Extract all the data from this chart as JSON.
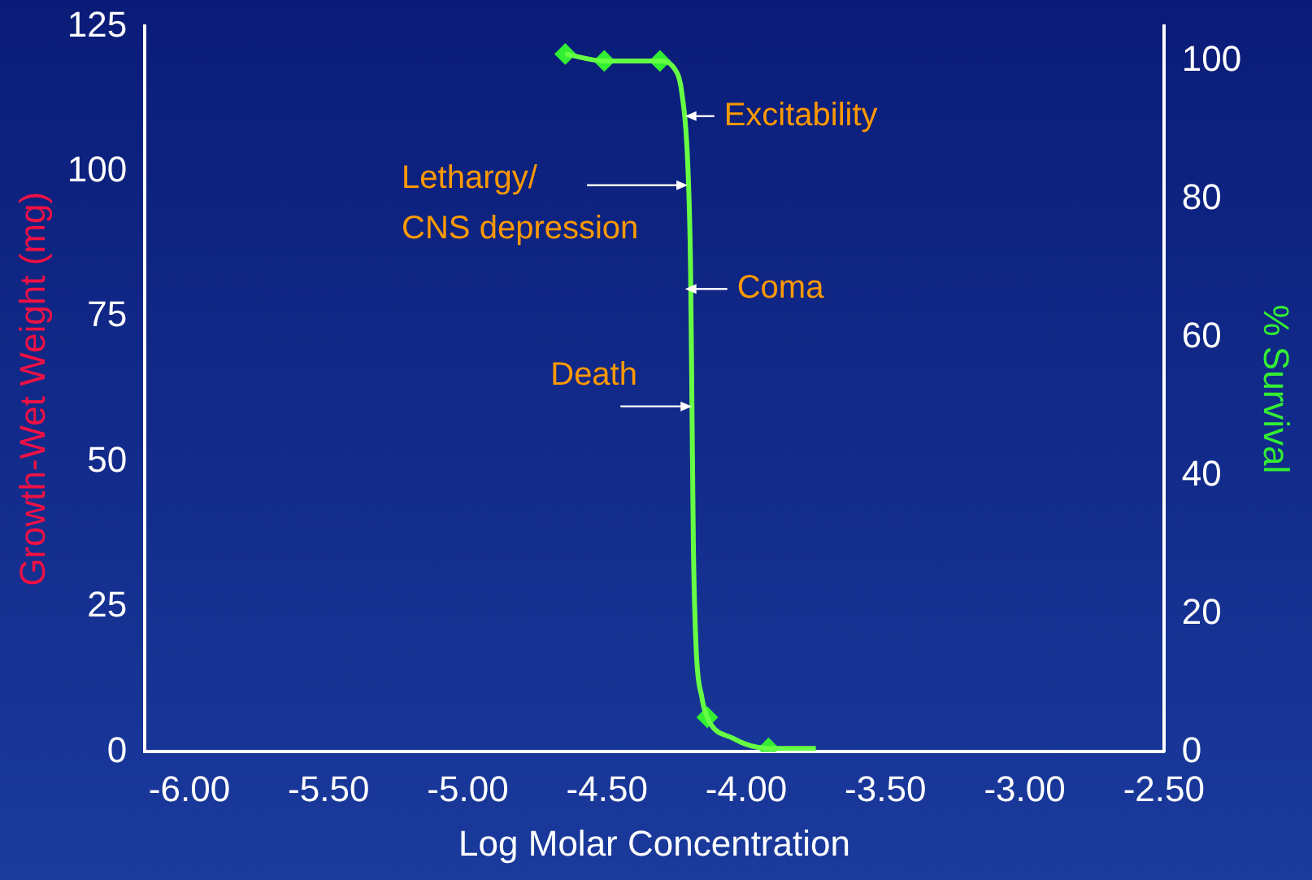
{
  "chart_data": {
    "type": "line",
    "xlabel": "Log Molar Concentration",
    "ylabel": "Growth-Wet Weight (mg)",
    "y2label": "% Survival",
    "xlim": [
      -6.16,
      -2.5
    ],
    "xticks": [
      {
        "value": -6,
        "label": "-6.00"
      },
      {
        "value": -5.5,
        "label": "-5.50"
      },
      {
        "value": -5,
        "label": "-5.00"
      },
      {
        "value": -4.5,
        "label": "-4.50"
      },
      {
        "value": -4,
        "label": "-4.00"
      },
      {
        "value": -3.5,
        "label": "-3.50"
      },
      {
        "value": -3,
        "label": "-3.00"
      },
      {
        "value": -2.5,
        "label": "-2.50"
      }
    ],
    "ylim": [
      0,
      125
    ],
    "yticks": [
      0,
      25,
      50,
      75,
      100,
      125
    ],
    "y2lim": [
      0,
      105
    ],
    "y2ticks": [
      0,
      20,
      40,
      60,
      80,
      100
    ],
    "series": [
      {
        "axis": "y2",
        "color": "#66ff44",
        "marker": "none",
        "x": [
          -4.65,
          -4.51,
          -4.31,
          -4.26,
          -4.23,
          -4.21,
          -4.2,
          -4.195,
          -4.19,
          -4.18,
          -4.16,
          -4.14,
          -4.05,
          -3.92,
          -3.75
        ],
        "values": [
          101,
          100,
          100,
          99,
          95,
          85,
          70,
          50,
          30,
          15,
          8,
          5,
          2,
          0.5,
          0.5
        ]
      },
      {
        "type": "scatter",
        "axis": "y2",
        "color": "#33ee33",
        "marker": "diamond",
        "x": [
          -4.65,
          -4.51,
          -4.31,
          -4.14,
          -3.92
        ],
        "values": [
          101,
          100,
          100,
          5,
          0.5
        ]
      }
    ],
    "annotations": [
      {
        "text": "Excitability",
        "x": -4.22,
        "y": 92
      },
      {
        "text": "Lethargy/\nCNS depression",
        "x": -4.21,
        "y": 82
      },
      {
        "text": "Coma",
        "x": -4.22,
        "y": 67
      },
      {
        "text": "Death",
        "x": -4.195,
        "y": 50
      }
    ],
    "grid": false,
    "legend": false
  }
}
